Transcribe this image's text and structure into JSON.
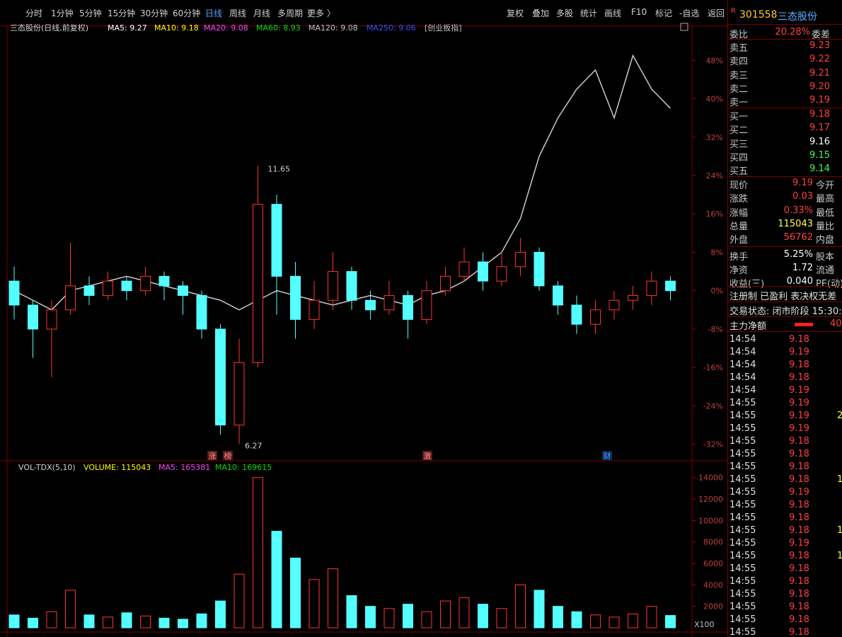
{
  "toolbar": {
    "periods": [
      "分时",
      "1分钟",
      "5分钟",
      "15分钟",
      "30分钟",
      "60分钟",
      "日线",
      "周线",
      "月线",
      "多周期",
      "更多 〉"
    ],
    "tools": [
      "复权",
      "叠加",
      "多股",
      "统计",
      "画线",
      "F10",
      "标记",
      "-自选",
      "返回"
    ]
  },
  "chart_header": {
    "name": "三态股份(日线,前复权)",
    "ma": [
      {
        "label": "MA5: 9.27",
        "color": "#ffffff"
      },
      {
        "label": "MA10: 9.18",
        "color": "#ffff00"
      },
      {
        "label": "MA20: 9.08",
        "color": "#ff40ff"
      },
      {
        "label": "MA60: 8.93",
        "color": "#00e000"
      },
      {
        "label": "MA120: 9.08",
        "color": "#c0c0c0"
      },
      {
        "label": "MA250: 9.06",
        "color": "#3050ff"
      }
    ]
  },
  "chart_data": [
    {
      "type": "candlestick",
      "up_color": "#ff3232",
      "down_color": "#54ffff",
      "open": [
        2,
        -3,
        -8,
        -4,
        1,
        -1,
        2,
        0,
        3,
        1,
        -1,
        -8,
        -28,
        -15,
        18,
        3,
        -6,
        -2,
        4,
        -2,
        -4,
        -1,
        -6,
        0,
        3,
        6,
        2,
        5,
        8,
        1,
        -3,
        -7,
        -4,
        -2,
        -1,
        2
      ],
      "close": [
        -3,
        -8,
        -4,
        1,
        -1,
        2,
        0,
        3,
        1,
        -1,
        -8,
        -28,
        -15,
        18,
        3,
        -6,
        -2,
        4,
        -2,
        -4,
        -1,
        -6,
        0,
        3,
        6,
        2,
        5,
        8,
        1,
        -3,
        -7,
        -4,
        -2,
        -1,
        2,
        0
      ],
      "high": [
        5,
        -2,
        -2,
        10,
        3,
        4,
        3,
        5,
        4,
        2,
        0,
        -7,
        -10,
        26,
        20,
        6,
        2,
        8,
        5,
        0,
        2,
        0,
        2,
        5,
        9,
        8,
        8,
        11,
        9,
        2,
        -1,
        -2,
        0,
        1,
        4,
        3
      ],
      "low": [
        -6,
        -14,
        -18,
        -5,
        -3,
        -2,
        -2,
        -1,
        -2,
        -5,
        -10,
        -30,
        -32,
        -16,
        -5,
        -10,
        -8,
        -4,
        -4,
        -6,
        -5,
        -10,
        -7,
        -1,
        2,
        0,
        1,
        3,
        0,
        -5,
        -9,
        -9,
        -6,
        -4,
        -3,
        -2
      ],
      "overlay": {
        "name": "[创业板指]",
        "color": "#c8c8c8",
        "values": [
          0,
          -2,
          -4,
          0,
          1,
          2,
          3,
          2,
          1,
          0,
          -1,
          -2,
          -4,
          -2,
          0,
          -1,
          -2,
          -3,
          -2,
          -1,
          -2,
          -3,
          -1,
          0,
          2,
          5,
          8,
          15,
          28,
          36,
          42,
          46,
          36,
          49,
          42,
          38
        ]
      },
      "annotations": [
        "11.65",
        "6.27"
      ],
      "events": [
        "涨",
        "榜",
        "激",
        "财"
      ],
      "ylim": [
        -35.3,
        53.5
      ],
      "yticks": [
        {
          "value": 48,
          "label": "48%"
        },
        {
          "value": 40,
          "label": "40%"
        },
        {
          "value": 32,
          "label": "32%"
        },
        {
          "value": 24,
          "label": "24%"
        },
        {
          "value": 16,
          "label": "16%"
        },
        {
          "value": 8,
          "label": "8%"
        },
        {
          "value": 0,
          "label": "0%"
        },
        {
          "value": -8,
          "label": "-8%"
        },
        {
          "value": -16,
          "label": "-16%"
        },
        {
          "value": -24,
          "label": "-24%"
        },
        {
          "value": -32,
          "label": "-32%"
        }
      ]
    },
    {
      "type": "bar",
      "title": "VOL-TDX(5,10)",
      "legend": [
        {
          "label": "VOLUME: 115043",
          "color": "#ffff00"
        },
        {
          "label": "MA5: 165381",
          "color": "#ff40ff"
        },
        {
          "label": "MA10: 169615",
          "color": "#00e000"
        }
      ],
      "values": [
        1200,
        900,
        1500,
        3500,
        1200,
        1000,
        1400,
        1100,
        900,
        800,
        1300,
        2500,
        5000,
        14000,
        9000,
        6500,
        4500,
        5500,
        3000,
        2000,
        1800,
        2200,
        1500,
        2500,
        2800,
        2200,
        1800,
        4000,
        3500,
        2000,
        1500,
        1200,
        1000,
        1300,
        2000,
        1150
      ],
      "unit": "X100",
      "ylim": [
        0,
        15300
      ],
      "yticks": [
        2000,
        4000,
        6000,
        8000,
        10000,
        12000,
        14000
      ]
    }
  ],
  "quote": {
    "badge": "R",
    "code": "301558",
    "name": "三态股份",
    "weibi": {
      "label": "委比",
      "value": "20.28%",
      "label2": "委差"
    },
    "sell": [
      {
        "label": "卖五",
        "price": "9.23"
      },
      {
        "label": "卖四",
        "price": "9.22"
      },
      {
        "label": "卖三",
        "price": "9.21"
      },
      {
        "label": "卖二",
        "price": "9.20"
      },
      {
        "label": "卖一",
        "price": "9.19"
      }
    ],
    "buy": [
      {
        "label": "买一",
        "price": "9.18"
      },
      {
        "label": "买二",
        "price": "9.17"
      },
      {
        "label": "买三",
        "price": "9.16"
      },
      {
        "label": "买四",
        "price": "9.15"
      },
      {
        "label": "买五",
        "price": "9.14"
      }
    ],
    "stats": [
      {
        "label": "现价",
        "value": "9.19",
        "label2": "今开"
      },
      {
        "label": "涨跌",
        "value": "0.03",
        "label2": "最高"
      },
      {
        "label": "涨幅",
        "value": "0.33%",
        "label2": "最低"
      },
      {
        "label": "总量",
        "value": "115043",
        "label2": "量比"
      },
      {
        "label": "外盘",
        "value": "56762",
        "label2": "内盘"
      },
      {
        "label": "换手",
        "value": "5.25%",
        "label2": "股本"
      },
      {
        "label": "净资",
        "value": "1.72",
        "label2": "流通"
      },
      {
        "label": "收益(三)",
        "value": "0.040",
        "label2": "PE(动)"
      }
    ],
    "tags": "注册制 已盈利 表决权无差",
    "status": "交易状态: 闭市阶段 15:30:",
    "net_flow": {
      "label": "主力净额",
      "value": "40"
    }
  },
  "ticks": [
    {
      "time": "14:54",
      "price": "9.18"
    },
    {
      "time": "14:54",
      "price": "9.19"
    },
    {
      "time": "14:54",
      "price": "9.18"
    },
    {
      "time": "14:54",
      "price": "9.18"
    },
    {
      "time": "14:54",
      "price": "9.19"
    },
    {
      "time": "14:55",
      "price": "9.19"
    },
    {
      "time": "14:55",
      "price": "9.19",
      "volume": "2"
    },
    {
      "time": "14:55",
      "price": "9.19"
    },
    {
      "time": "14:55",
      "price": "9.18"
    },
    {
      "time": "14:55",
      "price": "9.18"
    },
    {
      "time": "14:55",
      "price": "9.18"
    },
    {
      "time": "14:55",
      "price": "9.18",
      "volume": "1"
    },
    {
      "time": "14:55",
      "price": "9.19"
    },
    {
      "time": "14:55",
      "price": "9.18"
    },
    {
      "time": "14:55",
      "price": "9.18"
    },
    {
      "time": "14:55",
      "price": "9.18",
      "volume": "1"
    },
    {
      "time": "14:55",
      "price": "9.19"
    },
    {
      "time": "14:55",
      "price": "9.18",
      "volume": "1"
    },
    {
      "time": "14:55",
      "price": "9.18"
    },
    {
      "time": "14:55",
      "price": "9.18"
    },
    {
      "time": "14:55",
      "price": "9.18"
    },
    {
      "time": "14:55",
      "price": "9.18"
    },
    {
      "time": "14:55",
      "price": "9.18"
    },
    {
      "time": "14:55",
      "price": "9.18"
    }
  ]
}
